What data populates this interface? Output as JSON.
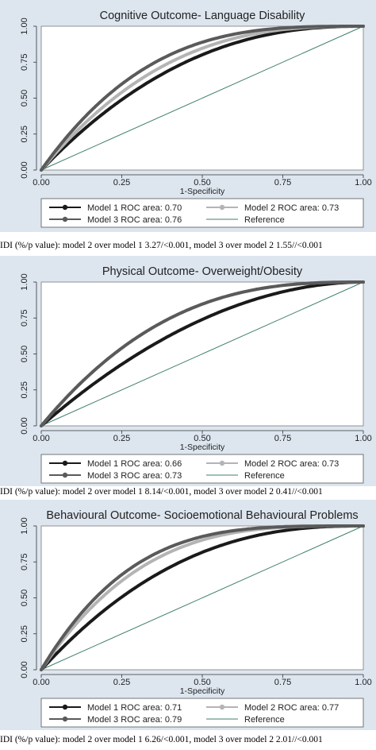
{
  "colors": {
    "background": "#dde6ef",
    "plot_background": "#ffffff",
    "model1": "#1a1a1a",
    "model2": "#b4b4b4",
    "model3": "#5a5a5a",
    "reference": "#3f7f6f"
  },
  "chart_data": [
    {
      "type": "line",
      "title": "Cognitive Outcome- Language Disability",
      "xlabel": "1-Specificity",
      "ylabel": "",
      "xlim": [
        0,
        1
      ],
      "ylim": [
        0,
        1
      ],
      "x_ticks": [
        "0.00",
        "0.25",
        "0.50",
        "0.75",
        "1.00"
      ],
      "y_ticks": [
        "0.00",
        "0.25",
        "0.50",
        "0.75",
        "1.00"
      ],
      "grid": false,
      "legend_position": "bottom",
      "series": [
        {
          "name": "Model 1 ROC area: 0.70",
          "auc": 0.7,
          "marker": "filled-circle"
        },
        {
          "name": "Model 2 ROC area: 0.73",
          "auc": 0.73,
          "marker": "filled-circle"
        },
        {
          "name": "Model 3 ROC area: 0.76",
          "auc": 0.76,
          "marker": "filled-circle"
        },
        {
          "name": "Reference",
          "x": [
            0,
            1
          ],
          "y": [
            0,
            1
          ]
        }
      ],
      "footnote": "IDI (%/p value): model 2 over model 1 3.27/<0.001, model 3 over model 2 1.55//<0.001"
    },
    {
      "type": "line",
      "title": "Physical Outcome- Overweight/Obesity",
      "xlabel": "1-Specificity",
      "ylabel": "",
      "xlim": [
        0,
        1
      ],
      "ylim": [
        0,
        1
      ],
      "x_ticks": [
        "0.00",
        "0.25",
        "0.50",
        "0.75",
        "1.00"
      ],
      "y_ticks": [
        "0.00",
        "0.25",
        "0.50",
        "0.75",
        "1.00"
      ],
      "grid": false,
      "legend_position": "bottom",
      "series": [
        {
          "name": "Model 1 ROC area: 0.66",
          "auc": 0.66,
          "marker": "filled-circle"
        },
        {
          "name": "Model 2 ROC area: 0.73",
          "auc": 0.73,
          "marker": "filled-circle"
        },
        {
          "name": "Model 3 ROC area: 0.73",
          "auc": 0.73,
          "marker": "filled-circle"
        },
        {
          "name": "Reference",
          "x": [
            0,
            1
          ],
          "y": [
            0,
            1
          ]
        }
      ],
      "footnote": "IDI (%/p value): model 2 over model 1 8.14/<0.001, model 3 over model 2 0.41//<0.001"
    },
    {
      "type": "line",
      "title": "Behavioural Outcome- Socioemotional Behavioural Problems",
      "xlabel": "1-Specificity",
      "ylabel": "",
      "xlim": [
        0,
        1
      ],
      "ylim": [
        0,
        1
      ],
      "x_ticks": [
        "0.00",
        "0.25",
        "0.50",
        "0.75",
        "1.00"
      ],
      "y_ticks": [
        "0.00",
        "0.25",
        "0.50",
        "0.75",
        "1.00"
      ],
      "grid": false,
      "legend_position": "bottom",
      "series": [
        {
          "name": "Model 1 ROC area: 0.71",
          "auc": 0.71,
          "marker": "filled-circle"
        },
        {
          "name": "Model 2 ROC area: 0.77",
          "auc": 0.77,
          "marker": "filled-circle"
        },
        {
          "name": "Model 3 ROC area: 0.79",
          "auc": 0.79,
          "marker": "filled-circle"
        },
        {
          "name": "Reference",
          "x": [
            0,
            1
          ],
          "y": [
            0,
            1
          ]
        }
      ],
      "footnote": "IDI (%/p value): model 2 over model 1 6.26/<0.001, model 3 over model 2 2.01//<0.001"
    }
  ]
}
